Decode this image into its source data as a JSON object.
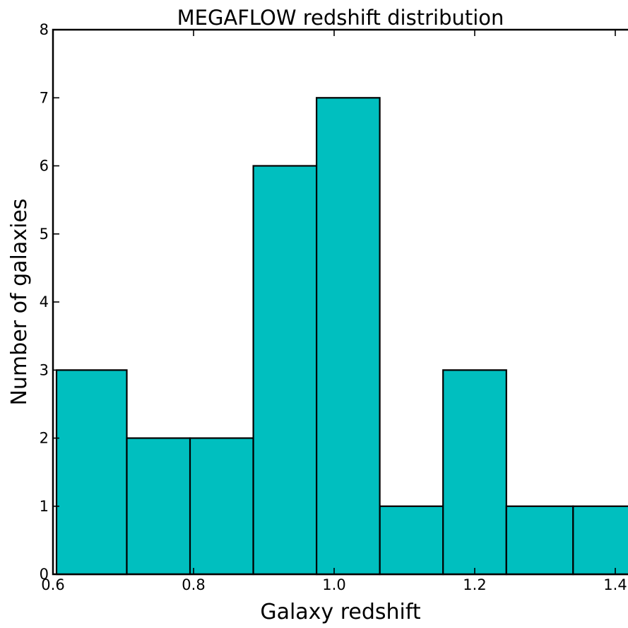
{
  "chart_data": {
    "type": "bar",
    "title": "MEGAFLOW redshift distribution",
    "xlabel": "Galaxy redshift",
    "ylabel": "Number of galaxies",
    "xlim": [
      0.6,
      1.5
    ],
    "ylim": [
      0,
      8
    ],
    "x_ticks": [
      "0.6",
      "0.8",
      "1.0",
      "1.2",
      "1.4"
    ],
    "y_ticks": [
      "0",
      "1",
      "2",
      "3",
      "4",
      "5",
      "6",
      "7",
      "8"
    ],
    "bins": [
      {
        "start": 0.605,
        "end": 0.705,
        "value": 3
      },
      {
        "start": 0.705,
        "end": 0.795,
        "value": 2
      },
      {
        "start": 0.795,
        "end": 0.885,
        "value": 2
      },
      {
        "start": 0.885,
        "end": 0.975,
        "value": 6
      },
      {
        "start": 0.975,
        "end": 1.065,
        "value": 7
      },
      {
        "start": 1.065,
        "end": 1.155,
        "value": 1
      },
      {
        "start": 1.155,
        "end": 1.245,
        "value": 3
      },
      {
        "start": 1.245,
        "end": 1.34,
        "value": 1
      },
      {
        "start": 1.34,
        "end": 1.43,
        "value": 1
      }
    ],
    "values": [
      3,
      2,
      2,
      6,
      7,
      1,
      3,
      1,
      1
    ],
    "bar_color": "#00bfbf",
    "grid": false
  }
}
